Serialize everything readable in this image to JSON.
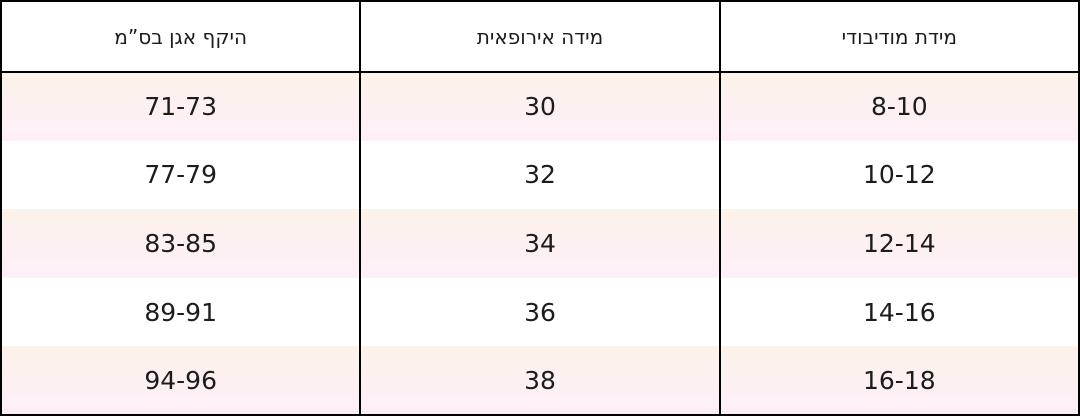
{
  "colors": {
    "border": "#000000",
    "text": "#1c1c1c",
    "header_bg": "#ffffff",
    "tint_row_top": "#fcf2e9",
    "tint_row_bottom": "#fdeffa"
  },
  "chart_data": {
    "type": "table",
    "direction": "rtl",
    "columns": [
      "מידת מודיבודי",
      "מידה אירופאית",
      "היקף אגן בס”מ"
    ],
    "rows": [
      [
        "8-10",
        "30",
        "71-73"
      ],
      [
        "10-12",
        "32",
        "77-79"
      ],
      [
        "12-14",
        "34",
        "83-85"
      ],
      [
        "14-16",
        "36",
        "89-91"
      ],
      [
        "16-18",
        "38",
        "94-96"
      ]
    ]
  }
}
